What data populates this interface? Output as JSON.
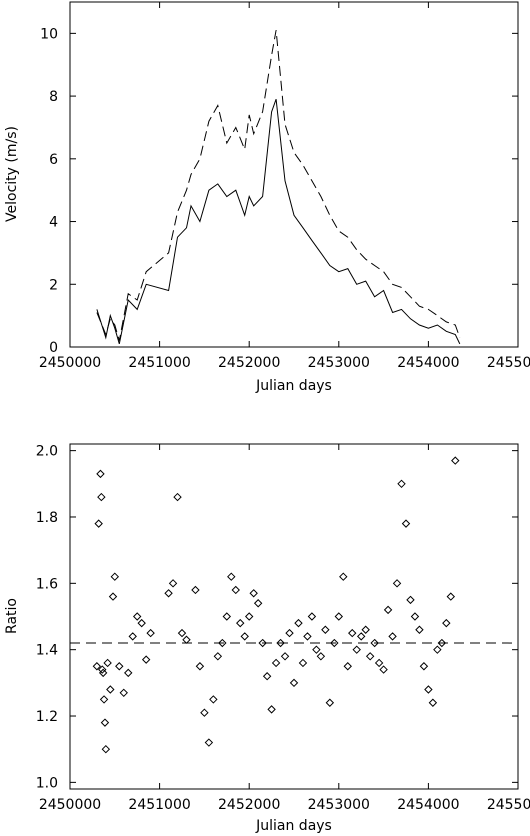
{
  "chart_data": [
    {
      "type": "line",
      "title": "",
      "xlabel": "Julian days",
      "ylabel": "Velocity (m/s)",
      "xlim": [
        2450000,
        2455000
      ],
      "ylim": [
        0,
        11
      ],
      "xticks": [
        2450000,
        2451000,
        2452000,
        2453000,
        2454000,
        2455000
      ],
      "yticks": [
        0,
        2,
        4,
        6,
        8,
        10
      ],
      "grid": false,
      "legend": "none",
      "series": [
        {
          "style": "solid",
          "x": [
            2450300,
            2450400,
            2450450,
            2450500,
            2450550,
            2450650,
            2450750,
            2450850,
            2451100,
            2451200,
            2451300,
            2451350,
            2451450,
            2451550,
            2451650,
            2451750,
            2451850,
            2451950,
            2452000,
            2452050,
            2452150,
            2452250,
            2452300,
            2452400,
            2452500,
            2452600,
            2452700,
            2452800,
            2452900,
            2453000,
            2453100,
            2453200,
            2453300,
            2453400,
            2453500,
            2453600,
            2453700,
            2453800,
            2453900,
            2454000,
            2454100,
            2454200,
            2454300,
            2454350
          ],
          "y": [
            1.2,
            0.3,
            1.0,
            0.6,
            0.1,
            1.5,
            1.2,
            2.0,
            1.8,
            3.5,
            3.8,
            4.5,
            4.0,
            5.0,
            5.2,
            4.8,
            5.0,
            4.2,
            4.8,
            4.5,
            4.8,
            7.5,
            7.9,
            5.3,
            4.2,
            3.8,
            3.4,
            3.0,
            2.6,
            2.4,
            2.5,
            2.0,
            2.1,
            1.6,
            1.8,
            1.1,
            1.2,
            0.9,
            0.7,
            0.6,
            0.7,
            0.5,
            0.4,
            0.1
          ]
        },
        {
          "style": "dashed",
          "x": [
            2450300,
            2450400,
            2450450,
            2450500,
            2450550,
            2450650,
            2450750,
            2450850,
            2451100,
            2451200,
            2451300,
            2451350,
            2451450,
            2451550,
            2451650,
            2451750,
            2451850,
            2451950,
            2452000,
            2452050,
            2452150,
            2452250,
            2452300,
            2452400,
            2452500,
            2452600,
            2452700,
            2452800,
            2452900,
            2453000,
            2453100,
            2453200,
            2453300,
            2453400,
            2453500,
            2453600,
            2453700,
            2453800,
            2453900,
            2454000,
            2454100,
            2454200,
            2454300,
            2454350
          ],
          "y": [
            1.1,
            0.4,
            0.9,
            0.7,
            0.2,
            1.7,
            1.5,
            2.4,
            3.0,
            4.3,
            5.0,
            5.5,
            6.0,
            7.2,
            7.7,
            6.5,
            7.0,
            6.3,
            7.4,
            6.8,
            7.5,
            9.3,
            10.1,
            7.1,
            6.2,
            5.8,
            5.3,
            4.8,
            4.2,
            3.7,
            3.5,
            3.1,
            2.8,
            2.6,
            2.4,
            2.0,
            1.9,
            1.6,
            1.3,
            1.2,
            1.0,
            0.8,
            0.7,
            0.3
          ]
        }
      ]
    },
    {
      "type": "scatter",
      "title": "",
      "xlabel": "Julian days",
      "ylabel": "Ratio",
      "xlim": [
        2450000,
        2455000
      ],
      "ylim": [
        0.98,
        2.02
      ],
      "xticks": [
        2450000,
        2451000,
        2452000,
        2453000,
        2454000,
        2455000
      ],
      "yticks": [
        1.0,
        1.2,
        1.4,
        1.6,
        1.8,
        2.0
      ],
      "marker": "diamond",
      "grid": false,
      "legend": "none",
      "reference_line": {
        "y": 1.42,
        "style": "dashed"
      },
      "series": [
        {
          "x": [
            2450300,
            2450320,
            2450340,
            2450350,
            2450360,
            2450370,
            2450380,
            2450390,
            2450400,
            2450420,
            2450450,
            2450480,
            2450500,
            2450550,
            2450600,
            2450650,
            2450700,
            2450750,
            2450800,
            2450850,
            2450900,
            2451100,
            2451150,
            2451200,
            2451250,
            2451300,
            2451400,
            2451450,
            2451500,
            2451550,
            2451600,
            2451650,
            2451700,
            2451750,
            2451800,
            2451850,
            2451900,
            2451950,
            2452000,
            2452050,
            2452100,
            2452150,
            2452200,
            2452250,
            2452300,
            2452350,
            2452400,
            2452450,
            2452500,
            2452550,
            2452600,
            2452650,
            2452700,
            2452750,
            2452800,
            2452850,
            2452900,
            2452950,
            2453000,
            2453050,
            2453100,
            2453150,
            2453200,
            2453250,
            2453300,
            2453350,
            2453400,
            2453450,
            2453500,
            2453550,
            2453600,
            2453650,
            2453700,
            2453750,
            2453800,
            2453850,
            2453900,
            2453950,
            2454000,
            2454050,
            2454100,
            2454150,
            2454200,
            2454250,
            2454300
          ],
          "y": [
            1.35,
            1.78,
            1.93,
            1.86,
            1.34,
            1.33,
            1.25,
            1.18,
            1.1,
            1.36,
            1.28,
            1.56,
            1.62,
            1.35,
            1.27,
            1.33,
            1.44,
            1.5,
            1.48,
            1.37,
            1.45,
            1.57,
            1.6,
            1.86,
            1.45,
            1.43,
            1.58,
            1.35,
            1.21,
            1.12,
            1.25,
            1.38,
            1.42,
            1.5,
            1.62,
            1.58,
            1.48,
            1.44,
            1.5,
            1.57,
            1.54,
            1.42,
            1.32,
            1.22,
            1.36,
            1.42,
            1.38,
            1.45,
            1.3,
            1.48,
            1.36,
            1.44,
            1.5,
            1.4,
            1.38,
            1.46,
            1.24,
            1.42,
            1.5,
            1.62,
            1.35,
            1.45,
            1.4,
            1.44,
            1.46,
            1.38,
            1.42,
            1.36,
            1.34,
            1.52,
            1.44,
            1.6,
            1.9,
            1.78,
            1.55,
            1.5,
            1.46,
            1.35,
            1.28,
            1.24,
            1.4,
            1.42,
            1.48,
            1.56,
            1.97
          ]
        }
      ]
    }
  ]
}
